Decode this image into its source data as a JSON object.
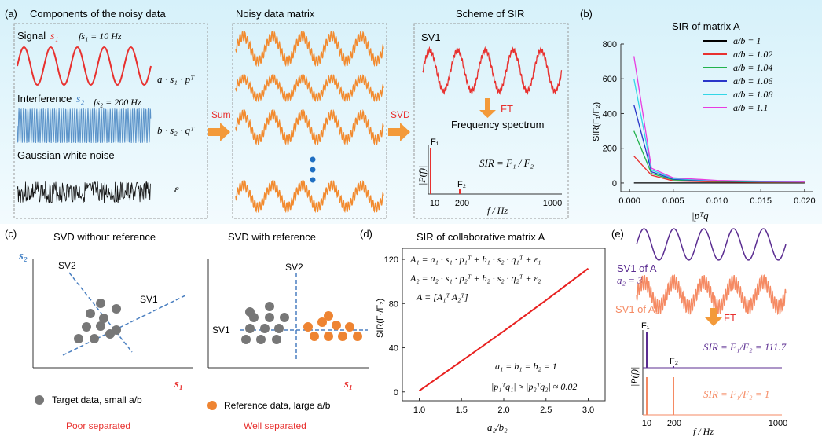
{
  "colors": {
    "panel_bg_top": "#d8f3fb",
    "panel_bg_bottom": "#eefafd",
    "signal_red": "#e8312f",
    "interference_blue": "#5b93c9",
    "noisy_orange": "#f28a2e",
    "sv_purple": "#5b2d91",
    "sv_coral": "#f58a63",
    "axis_blue_label": "#4a86c8",
    "arrow_orange": "#f39a3a",
    "dashed_blue": "#4a7fc0",
    "target_gray": "#777777",
    "reference_orange": "#ee8432",
    "poor_red": "#e8312f"
  },
  "panel_a": {
    "label": "(a)",
    "components_title": "Components of the noisy data",
    "signal_label": "Signal",
    "signal_sym": "s₁",
    "signal_freq": "fs₁ = 10 Hz",
    "signal_formula": "a · s₁ · pᵀ",
    "interference_label": "Interference",
    "interference_sym": "s₂",
    "interference_freq": "fs₂ = 200 Hz",
    "interference_formula": "b · s₂ · qᵀ",
    "noise_label": "Gaussian white noise",
    "noise_sym": "ε",
    "sum_label": "Sum",
    "matrix_title": "Noisy data matrix",
    "svd_label": "SVD",
    "scheme_title": "Scheme of SIR",
    "sv1_label": "SV1",
    "ft_label": "FT",
    "freq_spectrum": "Frequency spectrum",
    "f1_label": "F₁",
    "f2_label": "F₂",
    "pf_label": "|P(f)|",
    "sir_formula": "SIR = F₁ / F₂",
    "x_ticks": [
      "10",
      "200",
      "1000"
    ],
    "x_label": "f / Hz"
  },
  "panel_b": {
    "label": "(b)",
    "title": "SIR of matrix A",
    "ylabel": "SIR(F₁/F₂)",
    "xlabel": "|pᵀq|",
    "legend": [
      "a/b = 1",
      "a/b = 1.02",
      "a/b = 1.04",
      "a/b = 1.06",
      "a/b = 1.08",
      "a/b = 1.1"
    ]
  },
  "panel_c": {
    "label": "(c)",
    "left_title": "SVD without reference",
    "right_title": "SVD with reference",
    "s1_axis": "s₁",
    "s2_axis": "s₂",
    "sv1": "SV1",
    "sv2": "SV2",
    "target_legend": "Target data, small a/b",
    "reference_legend": "Reference data, large a/b",
    "poor": "Poor separated",
    "well": "Well separated"
  },
  "panel_d": {
    "label": "(d)",
    "title": "SIR of collaborative matrix A",
    "ylabel": "SIR(F₁/F₂)",
    "xlabel": "a₂/b₂",
    "eq1": "A₁ = a₁ · s₁ · p₁ᵀ + b₁ · s₂ · q₁ᵀ + ε₁",
    "eq2": "A₂ = a₂ · s₁ · p₂ᵀ + b₂ · s₂ · q₂ᵀ + ε₂",
    "eq3": "A = [A₁ᵀ  A₂ᵀ]",
    "cond1": "a₁ = b₁ = b₂ = 1",
    "cond2": "|p₁ᵀq₁| ≈ |p₂ᵀq₂| ≈ 0.02"
  },
  "panel_e": {
    "label": "(e)",
    "sv1_of_a": "SV1 of A",
    "a2": "a₂ = 3",
    "sv1_of_a1": "SV1 of A₁",
    "ft_label": "FT",
    "f1": "F₁",
    "f2": "F₂",
    "pf_label": "|P(f)|",
    "sir_top": "SIR = F₁/F₂ = 111.7",
    "sir_bottom": "SIR = F₁/F₂ = 1",
    "x_ticks": [
      "10",
      "200",
      "1000"
    ],
    "x_label": "f / Hz"
  },
  "chart_data": [
    {
      "type": "line",
      "title": "SIR of matrix A",
      "xlabel": "|pᵀq|",
      "ylabel": "SIR(F₁/F₂)",
      "xlim": [
        -0.001,
        0.021
      ],
      "ylim": [
        -50,
        800
      ],
      "x_ticks": [
        0.0,
        0.005,
        0.01,
        0.015,
        0.02
      ],
      "y_ticks": [
        0,
        200,
        400,
        600,
        800
      ],
      "legend_position": "top-right",
      "x": [
        0.0005,
        0.0025,
        0.005,
        0.01,
        0.015,
        0.02
      ],
      "series": [
        {
          "name": "a/b = 1",
          "color": "#000000",
          "values": [
            0,
            0,
            0,
            0,
            0,
            0
          ]
        },
        {
          "name": "a/b = 1.02",
          "color": "#e8312f",
          "values": [
            155,
            45,
            12,
            6,
            4,
            3
          ]
        },
        {
          "name": "a/b = 1.04",
          "color": "#22b24c",
          "values": [
            300,
            55,
            18,
            9,
            6,
            5
          ]
        },
        {
          "name": "a/b = 1.06",
          "color": "#2a36c9",
          "values": [
            450,
            65,
            22,
            11,
            8,
            6
          ]
        },
        {
          "name": "a/b = 1.08",
          "color": "#33d6e6",
          "values": [
            600,
            75,
            26,
            13,
            9,
            7
          ]
        },
        {
          "name": "a/b = 1.1",
          "color": "#e83ce0",
          "values": [
            730,
            85,
            30,
            15,
            10,
            8
          ]
        }
      ]
    },
    {
      "type": "line",
      "title": "SIR of collaborative matrix A",
      "xlabel": "a₂/b₂",
      "ylabel": "SIR(F₁/F₂)",
      "xlim": [
        0.8,
        3.2
      ],
      "ylim": [
        -8,
        130
      ],
      "x_ticks": [
        1.0,
        1.5,
        2.0,
        2.5,
        3.0
      ],
      "y_ticks": [
        0,
        40,
        80,
        120
      ],
      "series": [
        {
          "color": "#e8201f",
          "x": [
            1.0,
            1.5,
            2.0,
            2.5,
            3.0
          ],
          "values": [
            1,
            28,
            55,
            83,
            111.7
          ]
        }
      ]
    }
  ]
}
